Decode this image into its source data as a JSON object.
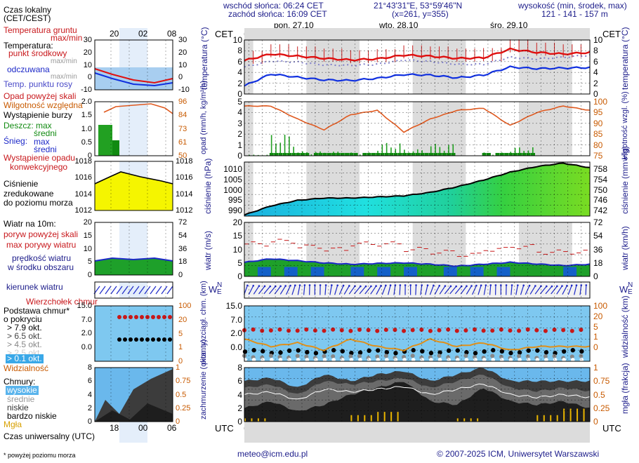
{
  "header": {
    "sunrise": "wschód słońca: 06:24 CET",
    "sunset": "zachód słońca: 16:09 CET",
    "coords": "21°43'31\"E, 53°59'46\"N",
    "grid": "(x=261, y=355)",
    "elev_title": "wysokość (min, środek, max)",
    "elev_values": "121 - 141 - 157 m",
    "cet_left": "CET",
    "cet_right": "CET",
    "utc_left": "UTC",
    "utc_right": "UTC"
  },
  "days_top": [
    "pon, 27.10",
    "wto, 28.10",
    "śro, 29.10"
  ],
  "days_bottom": [
    "27.10",
    "28.10",
    "29.10"
  ],
  "hours_cet": [
    "04",
    "10",
    "16",
    "22",
    "04",
    "10",
    "16",
    "22",
    "04",
    "10",
    "16",
    "22",
    "04"
  ],
  "hours_utc": [
    "03",
    "09",
    "15",
    "21",
    "03",
    "09",
    "15",
    "21",
    "03",
    "09",
    "15",
    "21",
    "03"
  ],
  "legend": {
    "time_local": "Czas lokalny",
    "time_local2": "(CET/CEST)",
    "time_ticks_top": [
      "20",
      "02",
      "08"
    ],
    "time_ticks_bottom": [
      "18",
      "00",
      "06"
    ],
    "time_utc": "Czas uniwersalny (UTC)",
    "ground_temp": "Temperatura gruntu",
    "maxmin": "max/min",
    "temperature": "Temperatura:",
    "mid_point": "punkt środkowy",
    "maxmin2": "max/min",
    "felt": "odczuwana",
    "maxmin3": "max/min",
    "dew": "Temp. punktu rosy",
    "precip_above": "Opad powyżej skali",
    "humidity": "Wilgotność względna",
    "storm": "Wystąpienie burzy",
    "rain_max": "Deszcz: max",
    "rain_mid": "średni",
    "snow_max": "Śnieg:",
    "snow_max2": "max",
    "snow_mid": "średni",
    "conv": "Wystąpienie opadu",
    "conv2": "konwekcyjnego",
    "pressure1": "Ciśnienie",
    "pressure2": "zredukowane",
    "pressure3": "do poziomu morza",
    "wind_title": "Wiatr na 10m:",
    "gust_above": "poryw powyżej skali",
    "gust_max": "max porywy wiatru",
    "wind_speed": "prędkość wiatru",
    "wind_speed2": "w środku obszaru",
    "wind_dir": "kierunek wiatru",
    "cloud_top": "Wierzchołek chmur",
    "cloud_base1": "Podstawa chmur*",
    "cloud_base2": "o pokryciu",
    "okt1": "> 7.9 okt.",
    "okt2": "> 6.5 okt.",
    "okt3": "> 4.5 okt.",
    "okt4": "> 2.5 okt.",
    "okt5": "> 0.1 okt.",
    "visibility": "Widzialność",
    "clouds": "Chmury:",
    "cl_high": "wysokie",
    "cl_mid": "średnie",
    "cl_low": "niskie",
    "cl_vlow": "bardzo niskie",
    "fog": "Mgła",
    "footnote": "* powyżej poziomu morza",
    "ticks": {
      "temp": [
        "30",
        "20",
        "10",
        "0",
        "-10"
      ],
      "rain": [
        "2.0",
        "1.5",
        "1.0",
        "0.5",
        "0"
      ],
      "hum": [
        "96",
        "84",
        "73",
        "61",
        "50"
      ],
      "pres": [
        "1018",
        "1016",
        "1014",
        "1012"
      ],
      "wind_ms": [
        "20",
        "15",
        "10",
        "5",
        "0"
      ],
      "wind_kmh": [
        "72",
        "54",
        "36",
        "18",
        "0"
      ],
      "cb": [
        "15.0",
        "7.0",
        "2.0",
        "0.0"
      ],
      "vis": [
        "100",
        "20",
        "5",
        "1",
        "0"
      ],
      "cl": [
        "8",
        "6",
        "4",
        "2",
        "0"
      ],
      "fog": [
        "1",
        "0.75",
        "0.5",
        "0.25",
        "0"
      ]
    }
  },
  "axes": {
    "temp_left": "temperatura (°C)",
    "temp_right": "temperatura (°C)",
    "precip_left": "opad (mm/h, kg/m²/h)",
    "precip_right": "wilgotność wzgl. (%)",
    "pres_left": "ciśnienie (hPa)",
    "pres_right": "ciśnienie (mm Hg)",
    "wind_left": "wiatr (m/s)",
    "wind_right": "wiatr (km/h)",
    "dir_left": "W",
    "dir_left2": "N",
    "dir_left3": "E",
    "dir_left4": "S",
    "cb_left": "pion. rozciągł. chm. (km)",
    "cb_right": "widzialność (km)",
    "cl_left": "zachmurzenie (oktanty)",
    "cl_right": "mgła (frakcja)",
    "ticks": {
      "temp_l": [
        "10",
        "8",
        "6",
        "4",
        "2",
        "0"
      ],
      "temp_r": [
        "10",
        "8",
        "6",
        "4",
        "2",
        "0"
      ],
      "prec_l": [
        "5",
        "4",
        "3",
        "2",
        "1",
        "0"
      ],
      "prec_r": [
        "100",
        "95",
        "90",
        "85",
        "80",
        "75"
      ],
      "pres_l": [
        "1010",
        "1005",
        "1000",
        "995",
        "990"
      ],
      "pres_r": [
        "758",
        "754",
        "750",
        "746",
        "742"
      ],
      "wind_l": [
        "20",
        "15",
        "10",
        "5",
        "0"
      ],
      "wind_r": [
        "72",
        "54",
        "36",
        "18",
        "0"
      ],
      "cb_l": [
        "15.0",
        "7.0",
        "2.0",
        "0.0"
      ],
      "cb_r": [
        "100",
        "20",
        "5",
        "1",
        "0"
      ],
      "cl_l": [
        "8",
        "6",
        "4",
        "2",
        "0"
      ],
      "cl_r": [
        "1",
        "0.75",
        "0.5",
        "0.25",
        "0"
      ]
    }
  },
  "footer": {
    "email": "meteo@icm.edu.pl",
    "copyright": "© 2007-2025 ICM, Uniwersytet Warszawski"
  },
  "chart_data": [
    {
      "type": "line",
      "title": "temperatura (°C)",
      "x_hours": [
        0,
        6,
        12,
        18,
        24,
        30,
        36,
        42,
        48,
        54,
        60,
        66,
        72,
        78
      ],
      "series": [
        {
          "name": "punkt środkowy",
          "values": [
            6.2,
            7.4,
            7.0,
            6.6,
            6.3,
            6.5,
            7.2,
            7.0,
            6.6,
            6.7,
            8.3,
            7.7,
            7.4,
            7.7
          ]
        },
        {
          "name": "odczuwana",
          "values": [
            5.0,
            6.1,
            5.9,
            5.4,
            5.3,
            5.5,
            6.3,
            6.0,
            5.5,
            5.5,
            6.8,
            6.5,
            6.8,
            7.2
          ]
        },
        {
          "name": "Temp. punktu rosy",
          "values": [
            1.5,
            3.7,
            3.1,
            2.6,
            2.5,
            2.9,
            3.6,
            3.5,
            3.0,
            3.5,
            5.0,
            4.7,
            4.8,
            4.9
          ]
        }
      ],
      "ylim": [
        0,
        10
      ],
      "color_temp": "#e01010",
      "color_dew": "#1030e0"
    },
    {
      "type": "line",
      "title": "wilgotność wzgl. (%)",
      "x_hours": [
        0,
        6,
        12,
        18,
        24,
        30,
        36,
        42,
        48,
        54,
        60,
        66,
        72,
        78
      ],
      "series": [
        {
          "name": "Wilgotność względna",
          "values": [
            98,
            98,
            92,
            87,
            94,
            96,
            86,
            92,
            96,
            97,
            89,
            95,
            98,
            96
          ]
        }
      ],
      "precip_max_mm": [
        0.1,
        2.0,
        0.4,
        0.4,
        0.3,
        1.2,
        0.6,
        1.1,
        0.0,
        0.3,
        0.8,
        0.0,
        0.0,
        0.0
      ],
      "ylim": [
        75,
        100
      ]
    },
    {
      "type": "area",
      "title": "ciśnienie (hPa)",
      "x_hours": [
        0,
        6,
        12,
        18,
        24,
        30,
        36,
        42,
        48,
        54,
        60,
        66,
        72,
        78
      ],
      "series": [
        {
          "name": "Ciśnienie",
          "values": [
            988.5,
            992.5,
            995.0,
            996.0,
            996.0,
            996.5,
            997.0,
            998.5,
            1001.0,
            1004.0,
            1007.5,
            1010.0,
            1011.5,
            1009.5
          ]
        }
      ],
      "ylim": [
        988,
        1012
      ]
    },
    {
      "type": "line",
      "title": "wiatr (m/s)",
      "x_hours": [
        0,
        6,
        12,
        18,
        24,
        30,
        36,
        42,
        48,
        54,
        60,
        66,
        72,
        78
      ],
      "series": [
        {
          "name": "max porywy wiatru",
          "values": [
            12,
            13,
            11,
            10,
            12,
            12,
            10,
            9,
            8,
            10,
            11,
            9,
            9,
            10
          ]
        },
        {
          "name": "prędkość wiatru",
          "values": [
            5.2,
            6.5,
            5.8,
            5.0,
            4.5,
            4.8,
            5.0,
            4.5,
            3.8,
            4.5,
            5.2,
            4.6,
            4.0,
            4.5
          ]
        }
      ],
      "ylim": [
        0,
        20
      ]
    },
    {
      "type": "line",
      "title": "widzialność (km)",
      "x_hours": [
        0,
        6,
        12,
        18,
        24,
        30,
        36,
        42,
        48,
        54,
        60,
        66,
        72,
        78
      ],
      "series": [
        {
          "name": "Widzialność",
          "values": [
            6,
            4,
            5,
            3,
            6,
            4,
            3,
            6,
            4,
            5,
            3,
            4,
            4,
            4
          ]
        },
        {
          "name": "Wierzchołek chmur",
          "values": [
            8.5,
            8.5,
            8.0,
            7.5,
            8.5,
            8.5,
            8.5,
            8.0,
            8.5,
            8.5,
            8.5,
            8.5,
            8.5,
            8.5
          ]
        }
      ],
      "ylim": [
        0,
        15
      ]
    },
    {
      "type": "area",
      "title": "zachmurzenie (oktanty)",
      "x_hours": [
        0,
        6,
        12,
        18,
        24,
        30,
        36,
        42,
        48,
        54,
        60,
        66,
        72,
        78
      ],
      "series": [
        {
          "name": "niskie",
          "values": [
            2,
            3,
            1.5,
            2.5,
            4,
            5,
            6,
            3,
            2.5,
            5,
            3,
            2.5,
            3,
            2
          ]
        },
        {
          "name": "średnie",
          "values": [
            5,
            5.5,
            4,
            6,
            5.5,
            6,
            6.5,
            5,
            6,
            7,
            5,
            4.5,
            5,
            4.5
          ]
        },
        {
          "name": "wysokie",
          "values": [
            6,
            6.5,
            5,
            7,
            6,
            7,
            7.5,
            6,
            7,
            8,
            6,
            6,
            6,
            6
          ]
        },
        {
          "name": "Mgła",
          "values": [
            0.05,
            0,
            0,
            0,
            0.1,
            0.15,
            0,
            0,
            0.05,
            0,
            0,
            0.1,
            0.2,
            0.05
          ]
        }
      ],
      "ylim": [
        0,
        8
      ]
    }
  ],
  "colors": {
    "navy": "#1c1c8a",
    "red": "#c8181c",
    "panel_grey": "#d6d6d6",
    "sky": "#7ec8f0",
    "pressure_fill": "#26d26a",
    "pressure_low": "#20c8e0",
    "wind_green": "#1ea02a",
    "wind_blue": "#1460c8",
    "humidity": "#e05a20"
  }
}
